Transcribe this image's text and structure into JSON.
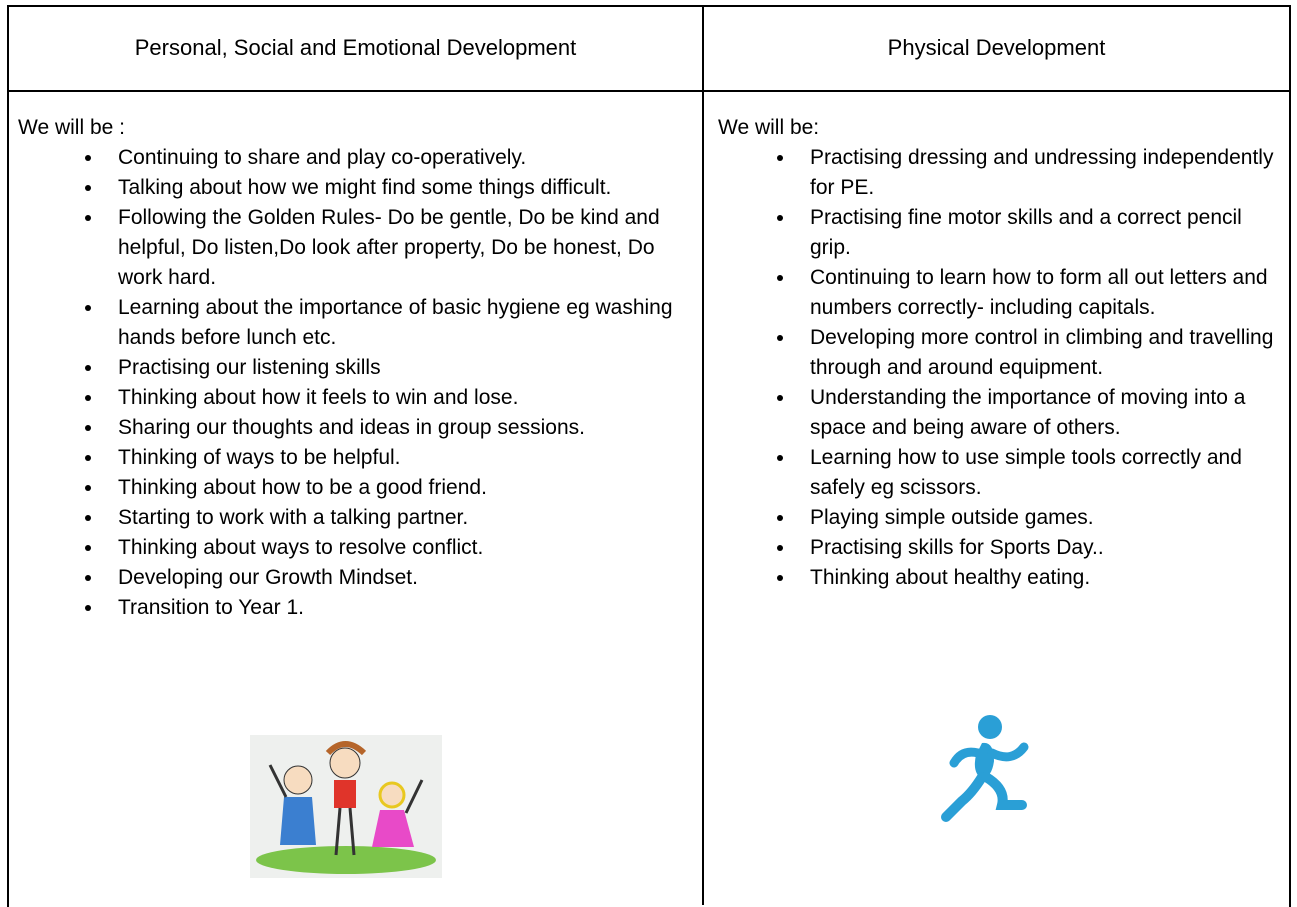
{
  "table": {
    "headers": [
      "Personal, Social and Emotional Development",
      "Physical Development"
    ],
    "cells": [
      {
        "intro": "We will be :",
        "items": [
          "Continuing to share and play co-operatively.",
          "Talking about how we might find some things difficult.",
          "Following the Golden Rules- Do be gentle, Do be kind and helpful, Do listen,Do look after property, Do be honest, Do work hard.",
          "Learning about the importance of basic hygiene eg washing hands before lunch etc.",
          "Practising our listening skills",
          "Thinking about how it feels to win and lose.",
          "Sharing our thoughts and ideas in group sessions.",
          "Thinking of ways to be helpful.",
          "Thinking about how to be a good friend.",
          "Starting to work with a talking partner.",
          "Thinking about ways to resolve conflict.",
          "Developing our Growth Mindset.",
          "Transition to Year 1."
        ]
      },
      {
        "intro": "We will be:",
        "items": [
          "Practising dressing and undressing independently for PE.",
          "Practising fine motor skills and a correct pencil grip.",
          "Continuing to learn how to form all out letters and numbers correctly- including capitals.",
          "Developing more control in climbing and travelling through and around equipment.",
          "Understanding the importance of moving into a space and being aware of others.",
          "Learning how to use simple tools correctly and safely eg scissors.",
          "Playing simple outside games.",
          "Practising skills for Sports Day..",
          "Thinking about healthy eating."
        ]
      }
    ]
  }
}
